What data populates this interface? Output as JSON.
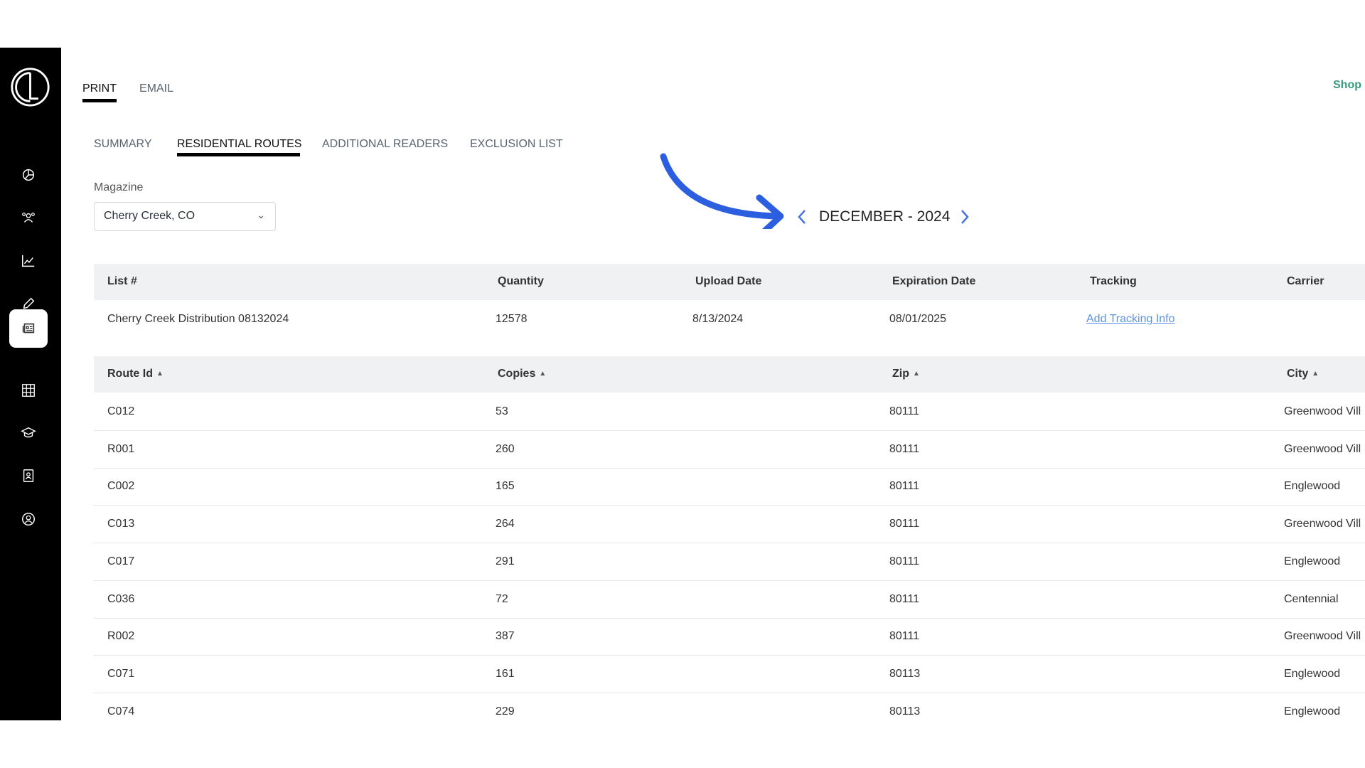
{
  "sidebar": {
    "logo": "CL",
    "items": [
      {
        "icon": "pie-chart-icon",
        "active": false
      },
      {
        "icon": "users-icon",
        "active": false
      },
      {
        "icon": "line-chart-icon",
        "active": false
      },
      {
        "icon": "pencil-icon",
        "active": false
      },
      {
        "icon": "newspaper-icon",
        "active": true
      },
      {
        "icon": "grid-icon",
        "active": false
      },
      {
        "icon": "graduation-cap-icon",
        "active": false
      },
      {
        "icon": "contact-book-icon",
        "active": false
      },
      {
        "icon": "user-circle-icon",
        "active": false
      }
    ]
  },
  "top_tabs": [
    {
      "label": "PRINT",
      "active": true
    },
    {
      "label": "EMAIL",
      "active": false
    }
  ],
  "shop_link": "Shop",
  "sub_tabs": [
    {
      "label": "SUMMARY"
    },
    {
      "label": "RESIDENTIAL ROUTES",
      "active": true
    },
    {
      "label": "ADDITIONAL READERS"
    },
    {
      "label": "EXCLUSION LIST"
    }
  ],
  "magazine": {
    "label": "Magazine",
    "value": "Cherry Creek, CO"
  },
  "period": {
    "label": "DECEMBER - 2024"
  },
  "colors": {
    "accent": "#2b5fe0",
    "link": "#5a93e8",
    "shop": "#3a9a7a"
  },
  "list_table": {
    "headers": [
      "List #",
      "Quantity",
      "Upload Date",
      "Expiration Date",
      "Tracking",
      "Carrier"
    ],
    "row": {
      "list": "Cherry Creek Distribution 08132024",
      "quantity": "12578",
      "upload": "8/13/2024",
      "expiration": "08/01/2025",
      "tracking": "Add Tracking Info",
      "carrier": ""
    }
  },
  "routes_table": {
    "headers": [
      "Route Id",
      "Copies",
      "Zip",
      "City"
    ],
    "rows": [
      [
        "C012",
        "53",
        "80111",
        "Greenwood Vill"
      ],
      [
        "R001",
        "260",
        "80111",
        "Greenwood Vill"
      ],
      [
        "C002",
        "165",
        "80111",
        "Englewood"
      ],
      [
        "C013",
        "264",
        "80111",
        "Greenwood Vill"
      ],
      [
        "C017",
        "291",
        "80111",
        "Englewood"
      ],
      [
        "C036",
        "72",
        "80111",
        "Centennial"
      ],
      [
        "R002",
        "387",
        "80111",
        "Greenwood Vill"
      ],
      [
        "C071",
        "161",
        "80113",
        "Englewood"
      ],
      [
        "C074",
        "229",
        "80113",
        "Englewood"
      ]
    ]
  }
}
